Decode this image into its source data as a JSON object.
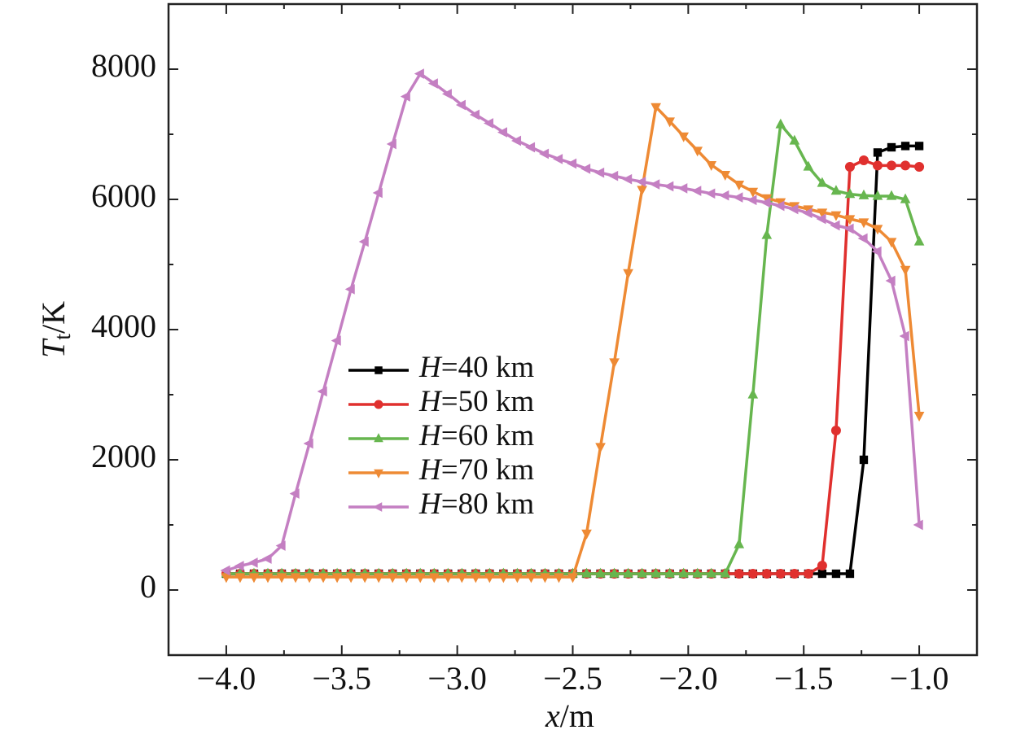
{
  "chart_data": {
    "type": "line",
    "xlabel": "x/m",
    "ylabel": "Tt/K",
    "xlim": [
      -4.25,
      -0.75
    ],
    "ylim": [
      -1000,
      9000
    ],
    "xticks": [
      {
        "value": -4,
        "label": "−4.0"
      },
      {
        "value": -3.5,
        "label": "−3.5"
      },
      {
        "value": -3,
        "label": "−3.0"
      },
      {
        "value": -2.5,
        "label": "−2.5"
      },
      {
        "value": -2,
        "label": "−2.0"
      },
      {
        "value": -1.5,
        "label": "−1.5"
      },
      {
        "value": -1,
        "label": "−1.0"
      }
    ],
    "yticks": [
      0,
      2000,
      4000,
      6000,
      8000
    ],
    "xminorticks": [
      -3.75,
      -3.25,
      -2.75,
      -2.25,
      -1.75,
      -1.25
    ],
    "yminorticks": [
      1000,
      3000,
      5000,
      7000
    ],
    "x": [
      -4.0,
      -3.94,
      -3.88,
      -3.82,
      -3.76,
      -3.7,
      -3.64,
      -3.58,
      -3.52,
      -3.46,
      -3.4,
      -3.34,
      -3.28,
      -3.22,
      -3.16,
      -3.1,
      -3.04,
      -2.98,
      -2.92,
      -2.86,
      -2.8,
      -2.74,
      -2.68,
      -2.62,
      -2.56,
      -2.5,
      -2.44,
      -2.38,
      -2.32,
      -2.26,
      -2.2,
      -2.14,
      -2.08,
      -2.02,
      -1.96,
      -1.9,
      -1.84,
      -1.78,
      -1.72,
      -1.66,
      -1.6,
      -1.54,
      -1.48,
      -1.42,
      -1.36,
      -1.3,
      -1.24,
      -1.18,
      -1.12,
      -1.06,
      -1.0
    ],
    "series": [
      {
        "name": "H=40 km",
        "color": "#000000",
        "marker": "square",
        "values": [
          250,
          250,
          250,
          250,
          250,
          250,
          250,
          250,
          250,
          250,
          250,
          250,
          250,
          250,
          250,
          250,
          250,
          250,
          250,
          250,
          250,
          250,
          250,
          250,
          250,
          250,
          250,
          250,
          250,
          250,
          250,
          250,
          250,
          250,
          250,
          250,
          250,
          250,
          250,
          250,
          250,
          250,
          250,
          250,
          250,
          250,
          2000,
          6720,
          6800,
          6820,
          6820
        ]
      },
      {
        "name": "H=50 km",
        "color": "#e0302e",
        "marker": "circle",
        "values": [
          250,
          250,
          250,
          250,
          250,
          250,
          250,
          250,
          250,
          250,
          250,
          250,
          250,
          250,
          250,
          250,
          250,
          250,
          250,
          250,
          250,
          250,
          250,
          250,
          250,
          250,
          250,
          250,
          250,
          250,
          250,
          250,
          250,
          250,
          250,
          250,
          250,
          250,
          250,
          250,
          250,
          250,
          250,
          375,
          2450,
          6500,
          6600,
          6520,
          6520,
          6520,
          6500
        ]
      },
      {
        "name": "H=60 km",
        "color": "#67b64f",
        "marker": "triangle-up",
        "values": [
          250,
          250,
          250,
          250,
          250,
          250,
          250,
          250,
          250,
          250,
          250,
          250,
          250,
          250,
          250,
          250,
          250,
          250,
          250,
          250,
          250,
          250,
          250,
          250,
          250,
          250,
          250,
          250,
          250,
          250,
          250,
          250,
          250,
          250,
          250,
          250,
          250,
          700,
          3000,
          5450,
          7150,
          6900,
          6500,
          6250,
          6130,
          6080,
          6060,
          6050,
          6050,
          6000,
          5350
        ]
      },
      {
        "name": "H=70 km",
        "color": "#ee8a34",
        "marker": "triangle-down",
        "values": [
          200,
          200,
          200,
          200,
          200,
          200,
          200,
          200,
          200,
          200,
          200,
          200,
          200,
          200,
          200,
          200,
          200,
          200,
          200,
          200,
          200,
          200,
          200,
          200,
          200,
          200,
          870,
          2200,
          3500,
          4870,
          6150,
          7420,
          7200,
          6970,
          6750,
          6530,
          6380,
          6230,
          6120,
          6020,
          5960,
          5900,
          5850,
          5800,
          5760,
          5700,
          5650,
          5550,
          5350,
          4920,
          2680
        ]
      },
      {
        "name": "H=80 km",
        "color": "#c47fc2",
        "marker": "triangle-left",
        "values": [
          300,
          370,
          420,
          480,
          680,
          1480,
          2250,
          3050,
          3830,
          4620,
          5350,
          6100,
          6850,
          7580,
          7930,
          7780,
          7620,
          7450,
          7300,
          7170,
          7030,
          6900,
          6800,
          6700,
          6620,
          6550,
          6470,
          6410,
          6360,
          6310,
          6270,
          6230,
          6200,
          6170,
          6130,
          6090,
          6060,
          6030,
          5990,
          5950,
          5900,
          5850,
          5790,
          5700,
          5600,
          5550,
          5400,
          5200,
          4750,
          3900,
          1000
        ]
      }
    ]
  }
}
